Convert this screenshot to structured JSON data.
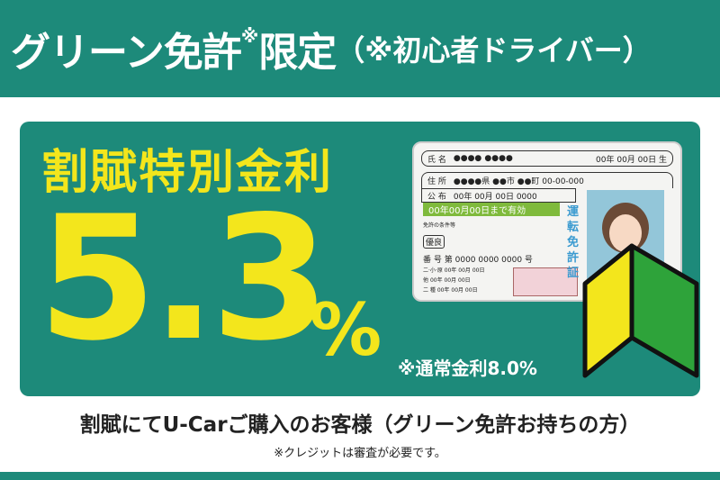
{
  "header": {
    "main": "グリーン免許",
    "mark": "※",
    "main2": "限定",
    "sub": "（※初心者ドライバー）"
  },
  "card": {
    "label": "割賦特別金利",
    "rate": "5.3",
    "unit": "%",
    "normal_rate": "※通常金利8.0%"
  },
  "license": {
    "name_label": "氏 名",
    "name": "●●●● ●●●●",
    "birth": "00年 00月 00日 生",
    "addr_label": "住 所",
    "addr": "●●●●県 ●●市 ●●町 00-00-000",
    "issue_label": "公 布",
    "issue": "00年 00月 00日 0000",
    "valid": "00年00月00日まで有効",
    "cond": "免許の条件等",
    "grade": "優良",
    "num_label": "番 号",
    "num": "第 0000 0000 0000 号",
    "title": "運転免許証",
    "dates": [
      "00年 00月 00日",
      "00年 00月 00日",
      "00年 00月 00日"
    ],
    "date_labels": [
      "二·小·原",
      "他",
      "二 種"
    ]
  },
  "footer": {
    "customer": "割賦にてU-Carご購入のお客様（グリーン免許お持ちの方）",
    "note": "※クレジットは審査が必要です。"
  },
  "colors": {
    "teal": "#1d8a7a",
    "yellow": "#f3e61c",
    "green": "#7fba3c"
  }
}
